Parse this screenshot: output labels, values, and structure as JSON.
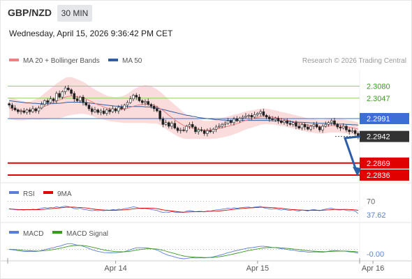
{
  "header": {
    "symbol": "GBP/NZD",
    "timeframe": "30 MIN",
    "datetime": "Wednesday, April 15, 2026 9:36:42 PM CET"
  },
  "credit": "Research © 2026 Trading Central",
  "colors": {
    "up_candle": "#ffffff",
    "down_candle": "#222222",
    "bollinger_band": "#f9d0d0",
    "ma20": "#f08080",
    "ma50": "#2f5fa0",
    "resistance": "#8fd16a",
    "pivot": "#3b6fd6",
    "support": "#e00000",
    "current": "#333333",
    "arrow": "#2d5ea8",
    "rsi": "#5b7fd6",
    "rsi_ma": "#e00000",
    "macd": "#5b7fd6",
    "macd_signal": "#3a9a20"
  },
  "chart_data": [
    {
      "type": "candlestick",
      "panel": "price",
      "legend": [
        {
          "label": "MA 20 + Bollinger Bands",
          "color": "#f08080"
        },
        {
          "label": "MA 50",
          "color": "#2f5fa0"
        }
      ],
      "ylim": [
        2.2815,
        2.3125
      ],
      "x_ticks": [
        {
          "label": "Apr 14",
          "index": 36
        },
        {
          "label": "Apr 15",
          "index": 84
        },
        {
          "label": "Apr 16",
          "index": 123
        }
      ],
      "levels": [
        {
          "label": "2.3080",
          "value": 2.308,
          "kind": "resistance"
        },
        {
          "label": "2.3047",
          "value": 2.3047,
          "kind": "resistance"
        },
        {
          "label": "2.2991",
          "value": 2.2991,
          "kind": "pivot"
        },
        {
          "label": "2.2942",
          "value": 2.2942,
          "kind": "current"
        },
        {
          "label": "2.2869",
          "value": 2.2869,
          "kind": "support"
        },
        {
          "label": "2.2836",
          "value": 2.2836,
          "kind": "support"
        }
      ],
      "forecast_arrow": {
        "from_value": 2.2942,
        "to_value": 2.2836
      },
      "closes": [
        2.3028,
        2.302,
        2.3015,
        2.301,
        2.3012,
        2.3008,
        2.3015,
        2.301,
        2.3018,
        2.3012,
        2.302,
        2.303,
        2.304,
        2.3035,
        2.3045,
        2.304,
        2.306,
        2.305,
        2.3065,
        2.3075,
        2.307,
        2.306,
        2.3045,
        2.304,
        2.305,
        2.3035,
        2.3028,
        2.3018,
        2.301,
        2.3015,
        2.3008,
        2.3012,
        2.3005,
        2.3015,
        2.301,
        2.3018,
        2.3012,
        2.3022,
        2.3018,
        2.3028,
        2.3035,
        2.3045,
        2.3055,
        2.305,
        2.304,
        2.3035,
        2.3038,
        2.303,
        2.3025,
        2.3018,
        2.3012,
        2.299,
        2.2975,
        2.298,
        2.297,
        2.2978,
        2.2965,
        2.2958,
        2.296,
        2.2958,
        2.297,
        2.2975,
        2.2968,
        2.2955,
        2.296,
        2.2958,
        2.295,
        2.2958,
        2.2955,
        2.2962,
        2.2968,
        2.297,
        2.2975,
        2.2978,
        2.2985,
        2.298,
        2.299,
        2.2985,
        2.2992,
        2.2995,
        2.2998,
        2.3,
        2.2995,
        2.3002,
        2.3005,
        2.301,
        2.3,
        2.2995,
        2.299,
        2.2988,
        2.2992,
        2.2985,
        2.298,
        2.2985,
        2.2978,
        2.2975,
        2.298,
        2.297,
        2.2965,
        2.2975,
        2.2968,
        2.2962,
        2.297,
        2.2975,
        2.2968,
        2.296,
        2.297,
        2.2975,
        2.298,
        2.2985,
        2.2975,
        2.2968,
        2.2965,
        2.297,
        2.296,
        2.2955,
        2.2958,
        2.295,
        2.2942
      ],
      "ma20": [
        2.302,
        2.3018,
        2.3016,
        2.3014,
        2.3013,
        2.3012,
        2.3013,
        2.3013,
        2.3015,
        2.3016,
        2.3018,
        2.3021,
        2.3025,
        2.3028,
        2.3032,
        2.3035,
        2.3039,
        2.3042,
        2.3046,
        2.305,
        2.3052,
        2.3053,
        2.3052,
        2.3051,
        2.305,
        2.3048,
        2.3045,
        2.3041,
        2.3037,
        2.3033,
        2.3029,
        2.3026,
        2.3023,
        2.302,
        2.3018,
        2.3017,
        2.3016,
        2.3016,
        2.3016,
        2.3017,
        2.3019,
        2.3022,
        2.3025,
        2.3027,
        2.3029,
        2.303,
        2.3031,
        2.303,
        2.3029,
        2.3027,
        2.3024,
        2.3019,
        2.3013,
        2.3007,
        2.3,
        2.2994,
        2.2988,
        2.2982,
        2.2977,
        2.2972,
        2.2969,
        2.2967,
        2.2965,
        2.2963,
        2.2962,
        2.2961,
        2.296,
        2.296,
        2.296,
        2.2961,
        2.2962,
        2.2964,
        2.2966,
        2.2968,
        2.297,
        2.2972,
        2.2975,
        2.2977,
        2.298,
        2.2983,
        2.2986,
        2.2988,
        2.299,
        2.2992,
        2.2994,
        2.2996,
        2.2997,
        2.2997,
        2.2996,
        2.2995,
        2.2994,
        2.2992,
        2.299,
        2.2989,
        2.2987,
        2.2985,
        2.2983,
        2.2981,
        2.2979,
        2.2977,
        2.2975,
        2.2973,
        2.2972,
        2.2971,
        2.297,
        2.2969,
        2.2969,
        2.297,
        2.2971,
        2.2972,
        2.2972,
        2.2972,
        2.2971,
        2.297,
        2.2969,
        2.2967,
        2.2966,
        2.2964,
        2.2962
      ],
      "ma50": [
        2.304,
        2.3039,
        2.3038,
        2.3037,
        2.3036,
        2.3035,
        2.3034,
        2.3034,
        2.3033,
        2.3033,
        2.3032,
        2.3032,
        2.3032,
        2.3032,
        2.3032,
        2.3032,
        2.3033,
        2.3033,
        2.3034,
        2.3035,
        2.3036,
        2.3036,
        2.3036,
        2.3036,
        2.3036,
        2.3035,
        2.3035,
        2.3034,
        2.3033,
        2.3032,
        2.3031,
        2.303,
        2.3029,
        2.3028,
        2.3027,
        2.3026,
        2.3025,
        2.3025,
        2.3024,
        2.3024,
        2.3024,
        2.3024,
        2.3024,
        2.3024,
        2.3024,
        2.3024,
        2.3023,
        2.3023,
        2.3022,
        2.3021,
        2.302,
        2.3018,
        2.3016,
        2.3014,
        2.3012,
        2.301,
        2.3008,
        2.3006,
        2.3004,
        2.3002,
        2.3,
        2.2999,
        2.2997,
        2.2996,
        2.2994,
        2.2993,
        2.2992,
        2.2991,
        2.299,
        2.2989,
        2.2988,
        2.2988,
        2.2987,
        2.2987,
        2.2986,
        2.2986,
        2.2986,
        2.2986,
        2.2986,
        2.2986,
        2.2986,
        2.2986,
        2.2986,
        2.2986,
        2.2986,
        2.2986,
        2.2986,
        2.2986,
        2.2986,
        2.2985,
        2.2985,
        2.2985,
        2.2984,
        2.2984,
        2.2983,
        2.2983,
        2.2982,
        2.2982,
        2.2981,
        2.2981,
        2.298,
        2.298,
        2.2979,
        2.2979,
        2.2978,
        2.2978,
        2.2978,
        2.2978,
        2.2977,
        2.2977,
        2.2977,
        2.2976,
        2.2976,
        2.2976,
        2.2975,
        2.2975,
        2.2974,
        2.2974,
        2.2973
      ],
      "bb_width": [
        0.003,
        0.003,
        0.0029,
        0.0028,
        0.0027,
        0.0026,
        0.0025,
        0.0025,
        0.0026,
        0.0028,
        0.003,
        0.0033,
        0.0036,
        0.0039,
        0.0042,
        0.0045,
        0.0048,
        0.005,
        0.0052,
        0.0053,
        0.0053,
        0.0052,
        0.005,
        0.0048,
        0.0046,
        0.0044,
        0.0042,
        0.004,
        0.0039,
        0.0038,
        0.0037,
        0.0036,
        0.0035,
        0.0034,
        0.0034,
        0.0034,
        0.0034,
        0.0035,
        0.0036,
        0.0038,
        0.004,
        0.0043,
        0.0046,
        0.0048,
        0.005,
        0.0051,
        0.0052,
        0.0052,
        0.0051,
        0.0049,
        0.0047,
        0.0046,
        0.0045,
        0.0044,
        0.0043,
        0.0042,
        0.0041,
        0.004,
        0.0038,
        0.0036,
        0.0034,
        0.0032,
        0.003,
        0.0028,
        0.0027,
        0.0026,
        0.0025,
        0.0025,
        0.0025,
        0.0025,
        0.0026,
        0.0026,
        0.0027,
        0.0027,
        0.0027,
        0.0027,
        0.0027,
        0.0026,
        0.0026,
        0.0025,
        0.0025,
        0.0024,
        0.0024,
        0.0023,
        0.0023,
        0.0022,
        0.0022,
        0.0021,
        0.0021,
        0.002,
        0.002,
        0.002,
        0.0019,
        0.0019,
        0.0019,
        0.0019,
        0.0019,
        0.0019,
        0.0019,
        0.0019,
        0.0019,
        0.0019,
        0.0019,
        0.0019,
        0.0019,
        0.0019,
        0.0019,
        0.0019,
        0.0019,
        0.0019,
        0.0019,
        0.0019,
        0.0019,
        0.0019,
        0.0019,
        0.0019,
        0.0019,
        0.0019,
        0.0019
      ]
    },
    {
      "type": "line",
      "panel": "rsi",
      "series": [
        {
          "name": "RSI",
          "color": "#5b7fd6"
        },
        {
          "name": "9MA",
          "color": "#e00000"
        }
      ],
      "ylim": [
        20,
        80
      ],
      "levels": [
        70,
        30
      ],
      "level_label": "70",
      "last_value_label": "37.62"
    },
    {
      "type": "line",
      "panel": "macd",
      "series": [
        {
          "name": "MACD",
          "color": "#5b7fd6"
        },
        {
          "name": "MACD Signal",
          "color": "#3a9a20"
        }
      ],
      "ylim": [
        -0.002,
        0.002
      ],
      "zero_label": "-0.00"
    }
  ]
}
